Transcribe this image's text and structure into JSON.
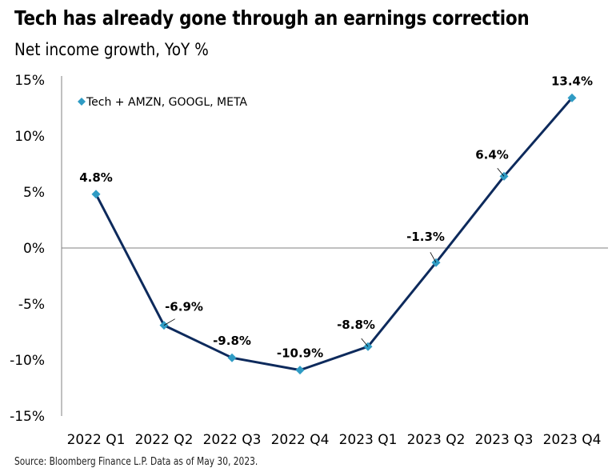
{
  "header": {
    "title": "Tech has already gone through an earnings correction",
    "subtitle": "Net income growth, YoY %"
  },
  "footer": {
    "source": "Source: Bloomberg Finance L.P. Data as of May 30, 2023."
  },
  "colors": {
    "line": "#0d2a5c",
    "marker": "#2f9bc4",
    "axis": "#808080"
  },
  "chart_data": {
    "type": "line",
    "title": "Tech has already gone through an earnings correction",
    "subtitle": "Net income growth, YoY %",
    "xlabel": "",
    "ylabel": "",
    "categories": [
      "2022 Q1",
      "2022 Q2",
      "2022 Q3",
      "2022 Q4",
      "2023 Q1",
      "2023 Q2",
      "2023 Q3",
      "2023 Q4"
    ],
    "series": [
      {
        "name": "Tech + AMZN, GOOGL, META",
        "values": [
          4.8,
          -6.9,
          -9.8,
          -10.9,
          -8.8,
          -1.3,
          6.4,
          13.4
        ],
        "data_labels": [
          "4.8%",
          "-6.9%",
          "-9.8%",
          "-10.9%",
          "-8.8%",
          "-1.3%",
          "6.4%",
          "13.4%"
        ]
      }
    ],
    "ylim": [
      -15,
      15
    ],
    "yticks": [
      15,
      10,
      5,
      0,
      -5,
      -10,
      -15
    ],
    "ytick_labels": [
      "15%",
      "10%",
      "5%",
      "0%",
      "-5%",
      "-10%",
      "-15%"
    ],
    "grid": false,
    "legend": {
      "position": "top-left",
      "entries": [
        "Tech + AMZN, GOOGL, META"
      ]
    }
  }
}
